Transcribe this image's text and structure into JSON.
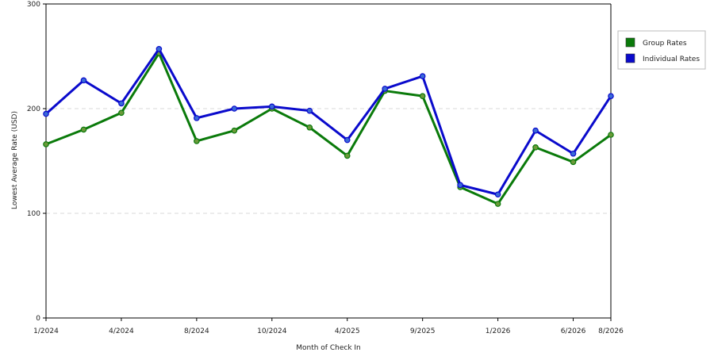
{
  "chart_data": {
    "type": "line",
    "title": "",
    "xlabel": "Month of Check In",
    "ylabel": "Lowest Average Rate (USD)",
    "ylim": [
      0,
      300
    ],
    "yticks": [
      "0",
      "100",
      "200",
      "300"
    ],
    "grid": "horizontal-dashed",
    "legend_position": "right",
    "x_tick_labels": [
      {
        "index": 0,
        "label": "1/2024"
      },
      {
        "index": 2,
        "label": "4/2024"
      },
      {
        "index": 4,
        "label": "8/2024"
      },
      {
        "index": 6,
        "label": "10/2024"
      },
      {
        "index": 8,
        "label": "4/2025"
      },
      {
        "index": 10,
        "label": "9/2025"
      },
      {
        "index": 12,
        "label": "1/2026"
      },
      {
        "index": 14,
        "label": "6/2026"
      },
      {
        "index": 15,
        "label": "8/2026"
      }
    ],
    "x_count": 16,
    "series": [
      {
        "name": "Group Rates",
        "color": "#0a7a0a",
        "values": [
          166,
          180,
          196,
          253,
          169,
          179,
          200,
          182,
          155,
          217,
          212,
          125,
          109,
          163,
          149,
          175
        ]
      },
      {
        "name": "Individual Rates",
        "color": "#0a0acc",
        "values": [
          195,
          227,
          205,
          257,
          191,
          200,
          202,
          198,
          170,
          219,
          231,
          127,
          118,
          179,
          157,
          212
        ]
      }
    ]
  }
}
